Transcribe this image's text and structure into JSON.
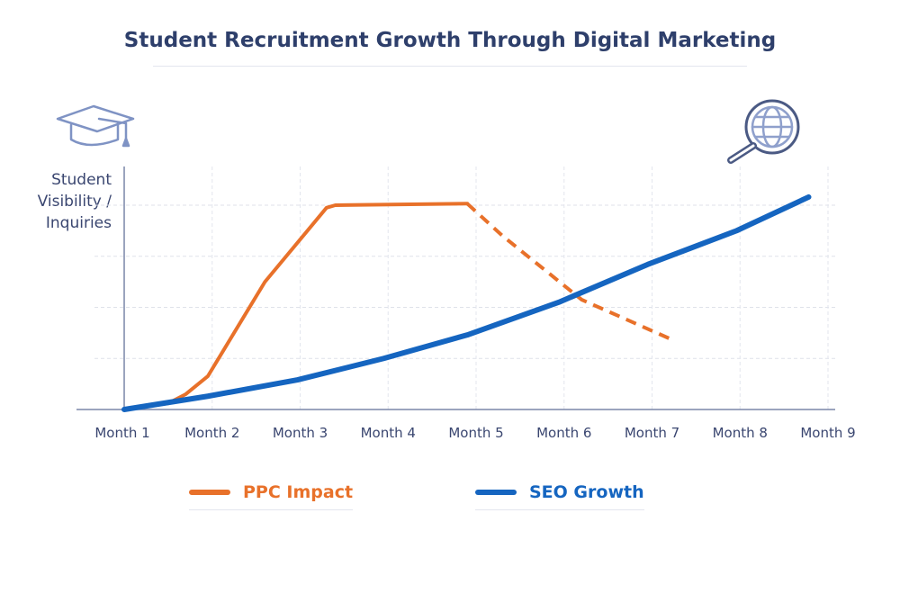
{
  "title": "Student Recruitment Growth Through Digital Marketing",
  "icons": {
    "left": "graduation-cap-icon",
    "right": "globe-magnifier-icon"
  },
  "colors": {
    "ppc": "#e8712a",
    "seo": "#1565c0",
    "text": "#2e3f6b",
    "grid": "#d8dbe3"
  },
  "chart_data": {
    "type": "line",
    "title": "Student Recruitment Growth Through Digital Marketing",
    "xlabel": "",
    "ylabel": "Student Visibility / Inquiries",
    "categories": [
      "Month 1",
      "Month 2",
      "Month 3",
      "Month 4",
      "Month 5",
      "Month 6",
      "Month 7",
      "Month 8",
      "Month 9"
    ],
    "xlim": [
      1,
      9
    ],
    "ylim": [
      0,
      4
    ],
    "grid": true,
    "legend": "bottom",
    "series": [
      {
        "name": "PPC Impact",
        "color": "#e8712a",
        "points": [
          [
            1,
            0
          ],
          [
            1.5,
            0.12
          ],
          [
            1.7,
            0.3
          ],
          [
            1.95,
            0.65
          ],
          [
            2.6,
            2.5
          ],
          [
            3.3,
            3.95
          ],
          [
            3.4,
            4.0
          ],
          [
            4.9,
            4.03
          ]
        ],
        "projected": [
          [
            4.9,
            4.03
          ],
          [
            5.3,
            3.4
          ],
          [
            6.2,
            2.15
          ],
          [
            7.25,
            1.35
          ]
        ]
      },
      {
        "name": "SEO Growth",
        "color": "#1565c0",
        "points": [
          [
            1,
            0
          ],
          [
            1.95,
            0.26
          ],
          [
            2.97,
            0.58
          ],
          [
            3.95,
            1.0
          ],
          [
            4.9,
            1.46
          ],
          [
            5.94,
            2.1
          ],
          [
            6.95,
            2.84
          ],
          [
            7.96,
            3.5
          ],
          [
            8.78,
            4.16
          ]
        ]
      }
    ]
  }
}
